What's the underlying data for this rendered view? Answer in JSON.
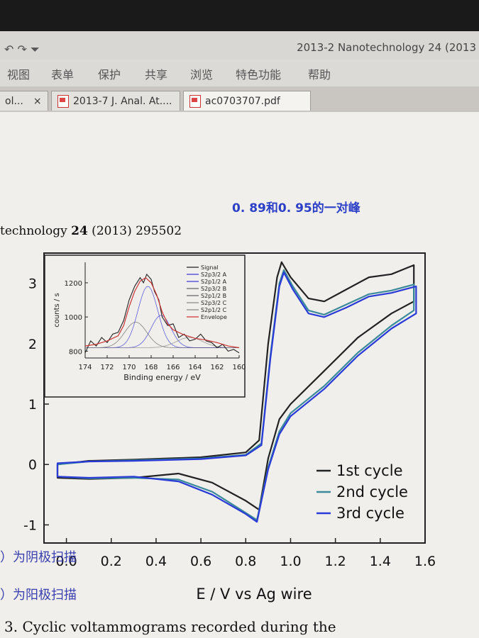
{
  "window": {
    "title": "2013-2 Nanotechnology 24 (2013",
    "quick_access": "↶ ↷ ⏷"
  },
  "menu": [
    "视图",
    "表单",
    "保护",
    "共享",
    "浏览",
    "特色功能",
    "帮助"
  ],
  "tabs": [
    {
      "label": "ol...",
      "close": "×"
    },
    {
      "label": "2013-7 J. Anal. At...."
    },
    {
      "label": "ac0703707.pdf"
    }
  ],
  "document": {
    "annotation": "0. 89和0. 95的一对峰",
    "running_head_prefix": "technology ",
    "running_head_volume": "24",
    "running_head_suffix": " (2013) 295502",
    "cn_note_1": "）为阴极扫描",
    "cn_note_2": "）为阳极扫描",
    "caption": "3.  Cyclic voltammograms recorded during the"
  },
  "chart_data": {
    "type": "line",
    "xlabel": "E / V vs Ag wire",
    "ylabel": "",
    "xlim": [
      -0.1,
      1.6
    ],
    "ylim": [
      -1.3,
      3.5
    ],
    "xticks": [
      "0.0",
      "0.2",
      "0.4",
      "0.6",
      "0.8",
      "1.0",
      "1.2",
      "1.4",
      "1.6"
    ],
    "yticks": [
      "-1",
      "0",
      "1",
      "2",
      "3"
    ],
    "legend_position": "bottom-right",
    "series": [
      {
        "name": "1st cycle",
        "color": "#222222",
        "points": [
          [
            -0.04,
            0.0
          ],
          [
            0.1,
            0.06
          ],
          [
            0.3,
            0.08
          ],
          [
            0.6,
            0.12
          ],
          [
            0.8,
            0.2
          ],
          [
            0.86,
            0.4
          ],
          [
            0.9,
            2.0
          ],
          [
            0.94,
            3.1
          ],
          [
            0.96,
            3.35
          ],
          [
            1.0,
            3.1
          ],
          [
            1.08,
            2.75
          ],
          [
            1.15,
            2.7
          ],
          [
            1.25,
            2.9
          ],
          [
            1.35,
            3.1
          ],
          [
            1.45,
            3.15
          ],
          [
            1.55,
            3.3
          ],
          [
            1.55,
            2.7
          ],
          [
            1.45,
            2.5
          ],
          [
            1.3,
            2.1
          ],
          [
            1.15,
            1.55
          ],
          [
            1.0,
            1.0
          ],
          [
            0.95,
            0.75
          ],
          [
            0.9,
            0.1
          ],
          [
            0.86,
            -0.75
          ],
          [
            0.8,
            -0.6
          ],
          [
            0.65,
            -0.3
          ],
          [
            0.5,
            -0.15
          ],
          [
            0.3,
            -0.22
          ],
          [
            0.1,
            -0.24
          ],
          [
            -0.04,
            -0.22
          ]
        ]
      },
      {
        "name": "2nd cycle",
        "color": "#3a8a9a",
        "points": [
          [
            -0.04,
            0.0
          ],
          [
            0.1,
            0.05
          ],
          [
            0.3,
            0.07
          ],
          [
            0.6,
            0.1
          ],
          [
            0.8,
            0.16
          ],
          [
            0.87,
            0.35
          ],
          [
            0.91,
            1.8
          ],
          [
            0.95,
            3.0
          ],
          [
            0.97,
            3.22
          ],
          [
            1.01,
            2.95
          ],
          [
            1.08,
            2.55
          ],
          [
            1.15,
            2.48
          ],
          [
            1.25,
            2.65
          ],
          [
            1.35,
            2.82
          ],
          [
            1.45,
            2.88
          ],
          [
            1.55,
            2.98
          ],
          [
            1.55,
            2.55
          ],
          [
            1.45,
            2.3
          ],
          [
            1.3,
            1.85
          ],
          [
            1.15,
            1.3
          ],
          [
            1.0,
            0.85
          ],
          [
            0.95,
            0.55
          ],
          [
            0.9,
            -0.05
          ],
          [
            0.85,
            -0.92
          ],
          [
            0.8,
            -0.8
          ],
          [
            0.65,
            -0.45
          ],
          [
            0.5,
            -0.25
          ],
          [
            0.3,
            -0.22
          ],
          [
            0.1,
            -0.23
          ],
          [
            -0.04,
            -0.2
          ]
        ]
      },
      {
        "name": "3rd cycle",
        "color": "#2a3ad8",
        "points": [
          [
            -0.04,
            0.02
          ],
          [
            0.1,
            0.05
          ],
          [
            0.3,
            0.06
          ],
          [
            0.6,
            0.09
          ],
          [
            0.8,
            0.15
          ],
          [
            0.87,
            0.32
          ],
          [
            0.91,
            1.75
          ],
          [
            0.95,
            2.95
          ],
          [
            0.97,
            3.18
          ],
          [
            1.01,
            2.9
          ],
          [
            1.08,
            2.5
          ],
          [
            1.15,
            2.44
          ],
          [
            1.25,
            2.6
          ],
          [
            1.35,
            2.78
          ],
          [
            1.45,
            2.84
          ],
          [
            1.56,
            2.95
          ],
          [
            1.56,
            2.5
          ],
          [
            1.45,
            2.25
          ],
          [
            1.3,
            1.8
          ],
          [
            1.15,
            1.25
          ],
          [
            1.0,
            0.8
          ],
          [
            0.95,
            0.5
          ],
          [
            0.9,
            -0.08
          ],
          [
            0.85,
            -0.95
          ],
          [
            0.8,
            -0.82
          ],
          [
            0.65,
            -0.5
          ],
          [
            0.5,
            -0.28
          ],
          [
            0.3,
            -0.2
          ],
          [
            0.1,
            -0.22
          ],
          [
            -0.04,
            -0.2
          ]
        ]
      }
    ],
    "inset": {
      "type": "line",
      "xlabel": "Binding energy / eV",
      "ylabel": "counts / s",
      "xlim": [
        174,
        160
      ],
      "ylim": [
        760,
        1320
      ],
      "xticks": [
        "174",
        "172",
        "170",
        "168",
        "166",
        "164",
        "162",
        "160"
      ],
      "yticks": [
        "800",
        "1000",
        "1200"
      ],
      "legend": [
        "Signal",
        "S2p3/2 A",
        "S2p1/2 A",
        "S2p3/2 B",
        "S2p1/2 B",
        "S2p3/2 C",
        "S2p1/2 C",
        "Envelope"
      ],
      "legend_colors": [
        "#222222",
        "#3a3ad8",
        "#3a3ad8",
        "#666666",
        "#666666",
        "#888888",
        "#888888",
        "#cc3333"
      ],
      "signal": [
        [
          174,
          790
        ],
        [
          173.5,
          860
        ],
        [
          173,
          830
        ],
        [
          172.5,
          880
        ],
        [
          172,
          850
        ],
        [
          171.5,
          900
        ],
        [
          171,
          910
        ],
        [
          170.5,
          980
        ],
        [
          170,
          1100
        ],
        [
          169.5,
          1180
        ],
        [
          169,
          1230
        ],
        [
          168.7,
          1200
        ],
        [
          168.4,
          1250
        ],
        [
          168,
          1220
        ],
        [
          167.7,
          1150
        ],
        [
          167.3,
          1100
        ],
        [
          167,
          1000
        ],
        [
          166.5,
          950
        ],
        [
          166,
          960
        ],
        [
          165.5,
          880
        ],
        [
          165,
          900
        ],
        [
          164.5,
          860
        ],
        [
          164,
          870
        ],
        [
          163.5,
          900
        ],
        [
          163,
          860
        ],
        [
          162.5,
          850
        ],
        [
          162,
          820
        ],
        [
          161.5,
          840
        ],
        [
          161,
          800
        ],
        [
          160.5,
          810
        ],
        [
          160,
          790
        ]
      ],
      "envelope": [
        [
          174,
          830
        ],
        [
          173,
          840
        ],
        [
          172,
          860
        ],
        [
          171,
          890
        ],
        [
          170.5,
          950
        ],
        [
          170,
          1060
        ],
        [
          169.5,
          1150
        ],
        [
          169,
          1210
        ],
        [
          168.5,
          1230
        ],
        [
          168,
          1200
        ],
        [
          167.5,
          1130
        ],
        [
          167,
          1030
        ],
        [
          166.5,
          960
        ],
        [
          166,
          925
        ],
        [
          165,
          895
        ],
        [
          164,
          875
        ],
        [
          163,
          865
        ],
        [
          162,
          850
        ],
        [
          161,
          830
        ],
        [
          160,
          820
        ]
      ],
      "components": [
        {
          "color": "#3a3ad8",
          "center": 168.3,
          "amp": 360,
          "width": 0.9
        },
        {
          "color": "#3a3ad8",
          "center": 167.1,
          "amp": 190,
          "width": 0.9
        },
        {
          "color": "#666666",
          "center": 169.4,
          "amp": 150,
          "width": 1.0
        },
        {
          "color": "#888888",
          "center": 164.5,
          "amp": 60,
          "width": 1.2
        }
      ],
      "baseline": 820
    }
  }
}
